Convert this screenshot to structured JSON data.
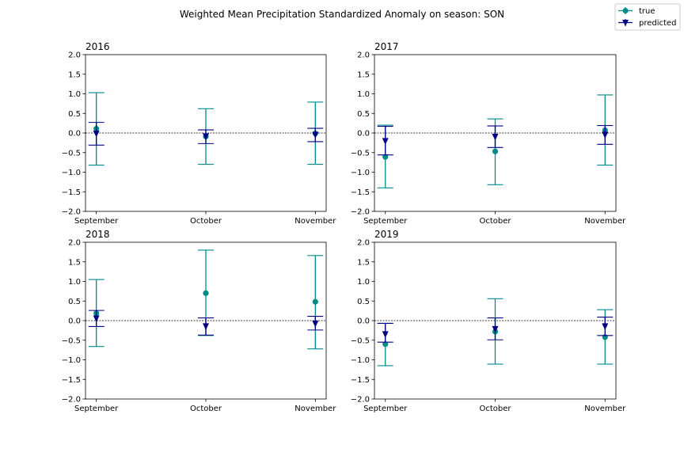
{
  "figure": {
    "title": "Weighted Mean Precipitation Standardized Anomaly on season: SON"
  },
  "legend": {
    "placement": "top-right",
    "items": [
      {
        "label": "true",
        "color": "#008b8b",
        "marker": "circle"
      },
      {
        "label": "predicted",
        "color": "#000080",
        "marker": "triangle-down"
      }
    ]
  },
  "chart_data": [
    {
      "type": "errorbar",
      "title": "2016",
      "categories": [
        "September",
        "October",
        "November"
      ],
      "ylim": [
        -2.0,
        2.0
      ],
      "yticks": [
        "2.0",
        "1.5",
        "1.0",
        "0.5",
        "0.0",
        "−0.5",
        "−1.0",
        "−1.5",
        "−2.0"
      ],
      "zero_line": true,
      "series": [
        {
          "name": "true",
          "color": "#008b8b",
          "values": [
            0.11,
            -0.09,
            -0.01
          ],
          "lower": [
            -0.82,
            -0.8,
            -0.8
          ],
          "upper": [
            1.03,
            0.62,
            0.79
          ]
        },
        {
          "name": "predicted",
          "color": "#000080",
          "values": [
            -0.02,
            -0.09,
            -0.05
          ],
          "lower": [
            -0.31,
            -0.27,
            -0.22
          ],
          "upper": [
            0.27,
            0.08,
            0.12
          ]
        }
      ]
    },
    {
      "type": "errorbar",
      "title": "2017",
      "categories": [
        "September",
        "October",
        "November"
      ],
      "ylim": [
        -2.0,
        2.0
      ],
      "yticks": [
        "2.0",
        "1.5",
        "1.0",
        "0.5",
        "0.0",
        "−0.5",
        "−1.0",
        "−1.5",
        "−2.0"
      ],
      "zero_line": true,
      "series": [
        {
          "name": "true",
          "color": "#008b8b",
          "values": [
            -0.61,
            -0.47,
            0.07
          ],
          "lower": [
            -1.4,
            -1.32,
            -0.82
          ],
          "upper": [
            0.2,
            0.36,
            0.97
          ]
        },
        {
          "name": "predicted",
          "color": "#000080",
          "values": [
            -0.21,
            -0.1,
            -0.05
          ],
          "lower": [
            -0.56,
            -0.37,
            -0.29
          ],
          "upper": [
            0.17,
            0.18,
            0.19
          ]
        }
      ]
    },
    {
      "type": "errorbar",
      "title": "2018",
      "categories": [
        "September",
        "October",
        "November"
      ],
      "ylim": [
        -2.0,
        2.0
      ],
      "yticks": [
        "2.0",
        "1.5",
        "1.0",
        "0.5",
        "0.0",
        "−0.5",
        "−1.0",
        "−1.5",
        "−2.0"
      ],
      "zero_line": true,
      "series": [
        {
          "name": "true",
          "color": "#008b8b",
          "values": [
            0.19,
            0.7,
            0.48
          ],
          "lower": [
            -0.66,
            -0.38,
            -0.72
          ],
          "upper": [
            1.05,
            1.8,
            1.66
          ]
        },
        {
          "name": "predicted",
          "color": "#000080",
          "values": [
            0.05,
            -0.15,
            -0.08
          ],
          "lower": [
            -0.15,
            -0.37,
            -0.24
          ],
          "upper": [
            0.26,
            0.07,
            0.11
          ]
        }
      ]
    },
    {
      "type": "errorbar",
      "title": "2019",
      "categories": [
        "September",
        "October",
        "November"
      ],
      "ylim": [
        -2.0,
        2.0
      ],
      "yticks": [
        "2.0",
        "1.5",
        "1.0",
        "0.5",
        "0.0",
        "−0.5",
        "−1.0",
        "−1.5",
        "−2.0"
      ],
      "zero_line": true,
      "series": [
        {
          "name": "true",
          "color": "#008b8b",
          "values": [
            -0.6,
            -0.28,
            -0.42
          ],
          "lower": [
            -1.15,
            -1.11,
            -1.11
          ],
          "upper": [
            -0.07,
            0.56,
            0.28
          ]
        },
        {
          "name": "predicted",
          "color": "#000080",
          "values": [
            -0.35,
            -0.22,
            -0.15
          ],
          "lower": [
            -0.55,
            -0.49,
            -0.38
          ],
          "upper": [
            -0.07,
            0.07,
            0.09
          ]
        }
      ]
    }
  ]
}
